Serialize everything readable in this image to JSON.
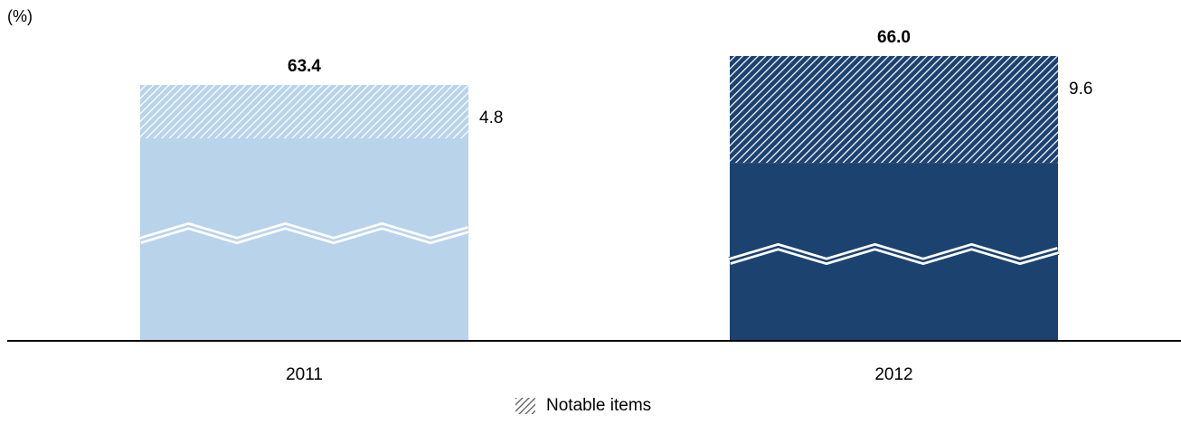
{
  "chart_data": {
    "type": "bar",
    "unit_label": "(%)",
    "categories": [
      "2011",
      "2012"
    ],
    "totals": [
      "63.4",
      "66.0"
    ],
    "notable_items": [
      "4.8",
      "9.6"
    ],
    "total_values": [
      63.4,
      66.0
    ],
    "notable_values": [
      4.8,
      9.6
    ],
    "axis_broken": true,
    "legend": [
      {
        "label": "Notable items",
        "pattern": "hatch"
      }
    ],
    "colors": {
      "bar_2011": "#b9d3eb",
      "bar_2012": "#1c4270",
      "axis": "#000000"
    }
  }
}
